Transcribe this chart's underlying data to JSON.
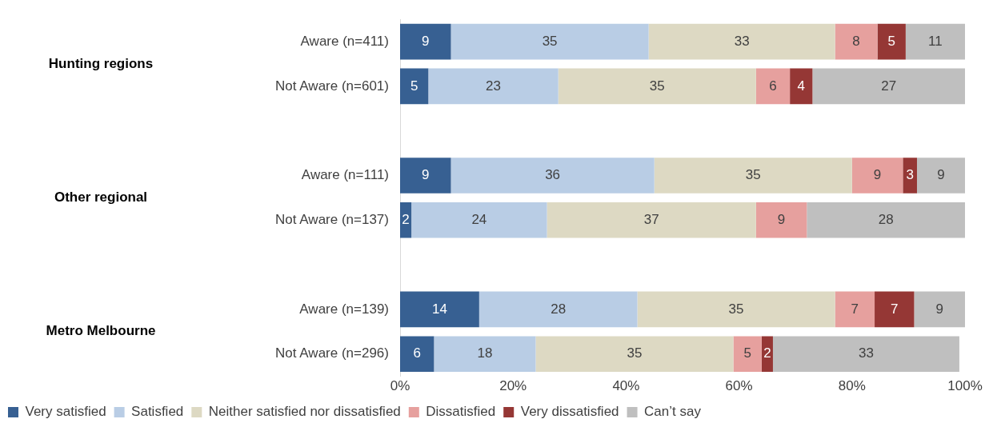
{
  "chart_data": {
    "type": "bar",
    "orientation": "horizontal",
    "stacked": true,
    "categories": [
      "Aware (n=411)",
      "Not Aware (n=601)",
      null,
      "Aware (n=111)",
      "Not Aware (n=137)",
      null,
      "Aware (n=139)",
      "Not Aware (n=296)"
    ],
    "series": [
      {
        "name": "Very satisfied",
        "color": "#376092",
        "values": [
          9,
          5,
          null,
          9,
          2,
          null,
          14,
          6
        ]
      },
      {
        "name": "Satisfied",
        "color": "#b9cde5",
        "values": [
          35,
          23,
          null,
          36,
          24,
          null,
          28,
          18
        ]
      },
      {
        "name": "Neither satisfied nor dissatisfied",
        "color": "#ddd9c3",
        "values": [
          33,
          35,
          null,
          35,
          37,
          null,
          35,
          35
        ]
      },
      {
        "name": "Dissatisfied",
        "color": "#e6a09e",
        "values": [
          7.5,
          6,
          null,
          9,
          9,
          null,
          7,
          5
        ],
        "value_labels": [
          "8",
          "6",
          null,
          "9",
          "9",
          null,
          "7",
          "5"
        ]
      },
      {
        "name": "Very dissatisfied",
        "color": "#953735",
        "values": [
          5,
          4,
          null,
          2.5,
          null,
          null,
          7,
          2
        ],
        "value_labels": [
          "5",
          "4",
          null,
          "3",
          null,
          null,
          "7",
          "2"
        ]
      },
      {
        "name": "Can’t say",
        "color": "#bfbfbf",
        "values": [
          10.5,
          27,
          null,
          8.5,
          28,
          null,
          9,
          33
        ],
        "value_labels": [
          "11",
          "27",
          null,
          "9",
          "28",
          null,
          "9",
          "33"
        ]
      }
    ],
    "xlim": [
      0,
      100
    ],
    "xticks": [
      {
        "value": 0,
        "label": "0%"
      },
      {
        "value": 20,
        "label": "20%"
      },
      {
        "value": 40,
        "label": "40%"
      },
      {
        "value": 60,
        "label": "60%"
      },
      {
        "value": 80,
        "label": "80%"
      },
      {
        "value": 100,
        "label": "100%"
      }
    ],
    "annotations": [
      "Hunting regions",
      "Other regional",
      "Metro Melbourne"
    ],
    "data_labels": true,
    "grid": false,
    "legend": "bottom"
  }
}
